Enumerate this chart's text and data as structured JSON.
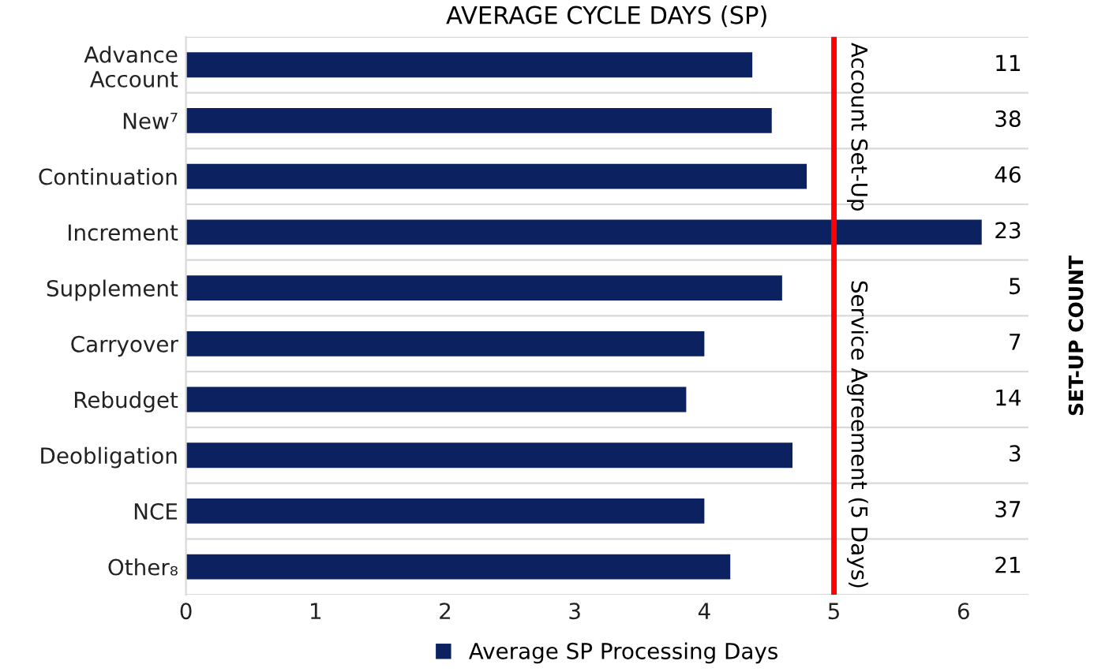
{
  "chart_data": {
    "type": "bar",
    "orientation": "horizontal",
    "title": "AVERAGE CYCLE DAYS (SP)",
    "y2label": "SET-UP COUNT",
    "categories": [
      "Advance\nAccount",
      "New⁷",
      "Continuation",
      "Increment",
      "Supplement",
      "Carryover",
      "Rebudget",
      "Deobligation",
      "NCE",
      "Other₈"
    ],
    "series": [
      {
        "name": "Average SP Processing Days",
        "color": "#0c2160",
        "values": [
          4.37,
          4.52,
          4.79,
          6.14,
          4.6,
          4.0,
          3.86,
          4.68,
          4.0,
          4.2
        ]
      }
    ],
    "xlim": [
      0,
      6.5
    ],
    "xticks": [
      0,
      1,
      2,
      3,
      4,
      5,
      6
    ],
    "grid": "y",
    "legend": "bottom",
    "ref_lines": [
      {
        "axis": "x",
        "value": 5,
        "label": "Service Agreement (5 Days)",
        "color": "#ff0000"
      }
    ],
    "annotations": [
      "Account Set-Up",
      "11",
      "38",
      "46",
      "23",
      "5",
      "7",
      "14",
      "3",
      "37",
      "21"
    ]
  }
}
